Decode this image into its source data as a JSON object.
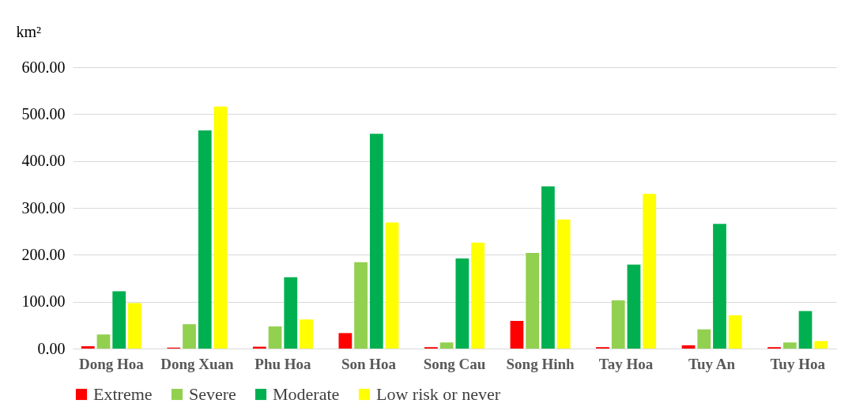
{
  "chart_data": {
    "type": "bar",
    "ylabel": "km²",
    "categories": [
      "Dong Hoa",
      "Dong Xuan",
      "Phu Hoa",
      "Son Hoa",
      "Song Cau",
      "Song Hinh",
      "Tay Hoa",
      "Tuy An",
      "Tuy Hoa"
    ],
    "series": [
      {
        "name": "Extreme",
        "color": "#ff0000",
        "values": [
          5,
          2,
          4,
          33,
          3,
          59,
          3,
          7,
          3
        ]
      },
      {
        "name": "Severe",
        "color": "#92d050",
        "values": [
          30,
          52,
          47,
          184,
          13,
          204,
          103,
          41,
          13
        ]
      },
      {
        "name": "Moderate",
        "color": "#00b050",
        "values": [
          122,
          465,
          152,
          458,
          192,
          346,
          179,
          266,
          80
        ]
      },
      {
        "name": "Low risk or never",
        "color": "#ffff00",
        "values": [
          97,
          516,
          62,
          269,
          226,
          275,
          330,
          71,
          16
        ]
      }
    ],
    "ylim": [
      0,
      600
    ],
    "yticks": [
      {
        "value": 0,
        "label": "0.00"
      },
      {
        "value": 100,
        "label": "100.00"
      },
      {
        "value": 200,
        "label": "200.00"
      },
      {
        "value": 300,
        "label": "300.00"
      },
      {
        "value": 400,
        "label": "400.00"
      },
      {
        "value": 500,
        "label": "500.00"
      },
      {
        "value": 600,
        "label": "600.00"
      }
    ],
    "grid": "y",
    "legend": "bottom"
  }
}
